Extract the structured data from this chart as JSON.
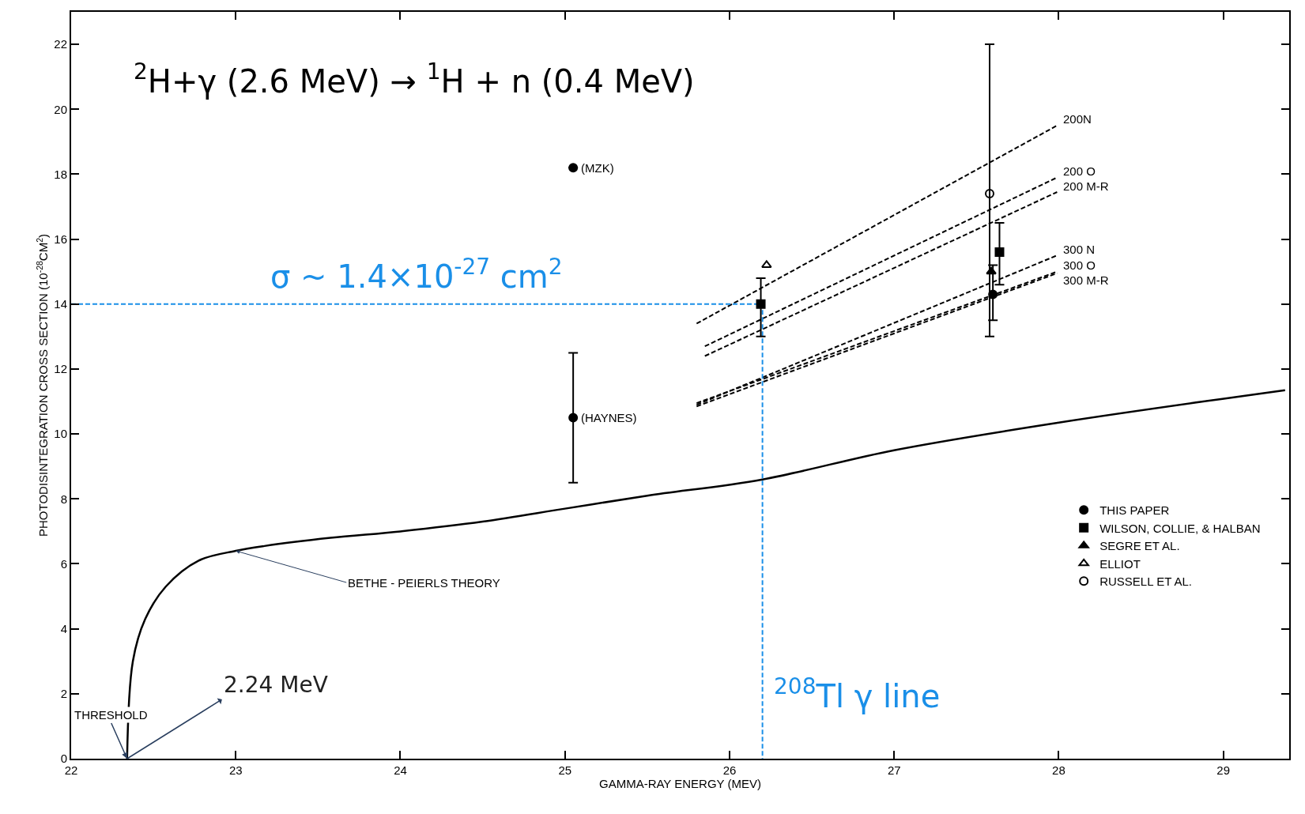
{
  "chart_data": {
    "type": "line",
    "xlabel": "GAMMA-RAY ENERGY (MEV)",
    "ylabel": "PHOTODISINTEGRATION CROSS SECTION (10$^{-28}$CM$^{2}$)",
    "xlim": [
      22,
      29.4
    ],
    "xticks": [
      22,
      23,
      24,
      25,
      26,
      27,
      28,
      29
    ],
    "ylim": [
      0,
      23
    ],
    "yticks": [
      0,
      2,
      4,
      6,
      8,
      10,
      12,
      14,
      16,
      18,
      20,
      22
    ],
    "legend": "bottom right",
    "series": [
      {
        "name": "BETHE - PEIERLS THEORY",
        "color": "#000000",
        "line_style": "solid",
        "marker": "none",
        "x": [
          22.34,
          22.375,
          22.45,
          22.575,
          22.775,
          23.0,
          23.175,
          23.575,
          24.0,
          24.5,
          25.0,
          25.5,
          26.2,
          27.0,
          28.0,
          29.375
        ],
        "values": [
          0,
          3.0,
          4.3,
          5.3,
          6.1,
          6.4,
          6.55,
          6.8,
          7.0,
          7.3,
          7.7,
          8.1,
          8.6,
          9.5,
          10.35,
          11.35
        ]
      },
      {
        "name": "200N",
        "color": "#000000",
        "line_style": "dashed",
        "marker": "none",
        "x": [
          25.8,
          27.99
        ],
        "values": [
          13.4,
          19.5
        ]
      },
      {
        "name": "200 O",
        "color": "#000000",
        "line_style": "dashed",
        "marker": "none",
        "x": [
          25.85,
          27.99
        ],
        "values": [
          12.7,
          17.9
        ]
      },
      {
        "name": "200 M-R",
        "color": "#000000",
        "line_style": "dashed",
        "marker": "none",
        "x": [
          25.85,
          27.99
        ],
        "values": [
          12.4,
          17.45
        ]
      },
      {
        "name": "300 N",
        "color": "#000000",
        "line_style": "dashed",
        "marker": "none",
        "x": [
          25.8,
          27.99
        ],
        "values": [
          10.9,
          15.5
        ]
      },
      {
        "name": "300 O",
        "color": "#000000",
        "line_style": "dashed",
        "marker": "none",
        "x": [
          25.8,
          27.99
        ],
        "values": [
          10.95,
          15.0
        ]
      },
      {
        "name": "300 M-R",
        "color": "#000000",
        "line_style": "dashed",
        "marker": "none",
        "x": [
          25.8,
          27.99
        ],
        "values": [
          10.85,
          14.95
        ]
      },
      {
        "color": "#1a8fe8",
        "line_style": "dashed",
        "marker": "none",
        "x": [
          22.0,
          26.2,
          26.2
        ],
        "values": [
          14,
          14,
          0
        ]
      },
      {
        "name": "THIS PAPER",
        "type": "scatter",
        "color": "#000000",
        "marker": "circle",
        "x": [
          25.05,
          25.05,
          27.6
        ],
        "values": [
          18.2,
          10.5,
          14.3
        ],
        "errors": [
          null,
          [
            8.5,
            12.5
          ],
          [
            13.5,
            15.2
          ]
        ]
      },
      {
        "name": "WILSON, COLLIE, & HALBAN",
        "type": "scatter",
        "color": "#000000",
        "marker": "square",
        "x": [
          26.19,
          27.64
        ],
        "values": [
          14.0,
          15.6
        ],
        "errors": [
          [
            13.0,
            14.8
          ],
          [
            14.6,
            16.5
          ]
        ]
      },
      {
        "name": "SEGRE ET AL.",
        "type": "scatter",
        "color": "#000000",
        "marker": "triangle",
        "x": [
          27.59
        ],
        "values": [
          15.0
        ]
      },
      {
        "name": "ELLIOT",
        "type": "scatter",
        "color": "#000000",
        "marker": "triangle-open",
        "x": [
          26.225
        ],
        "values": [
          15.2
        ]
      },
      {
        "name": "RUSSELL ET AL.",
        "type": "scatter",
        "color": "#000000",
        "marker": "circle-open",
        "x": [
          27.58
        ],
        "values": [
          17.4
        ],
        "errors": [
          [
            13.0,
            22.0
          ]
        ]
      }
    ],
    "annotations": [
      "$^{2}$H+γ (2.6 MeV) → $^{1}$H + n (0.4 MeV)",
      {
        "text": "σ ~ 1.4×10$^{-27}$ cm$^{2}$",
        "x": 24.1,
        "y": 14
      },
      {
        "text": "$^{208}$Tl γ line",
        "x": 26.2,
        "y": 2
      },
      {
        "text": "2.24 MeV",
        "x": 22.34,
        "y": 0
      },
      {
        "text": "THRESHOLD",
        "x": 22.34,
        "y": 0
      },
      {
        "text": "(MZK)",
        "x": 25.05,
        "y": 18.2
      },
      {
        "text": "(HAYNES)",
        "x": 25.05,
        "y": 10.5
      }
    ]
  }
}
